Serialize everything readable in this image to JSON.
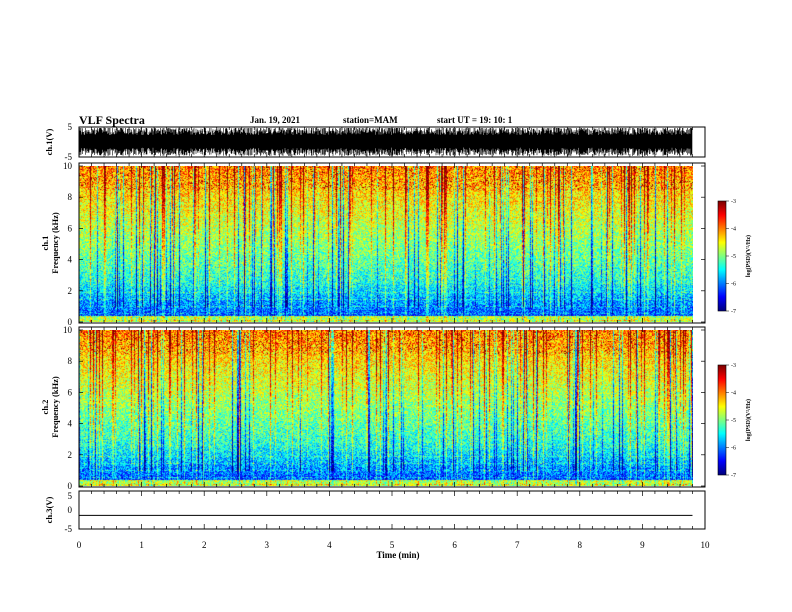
{
  "header": {
    "title": "VLF Spectra",
    "date": "Jan. 19, 2021",
    "station": "station=MAM",
    "start": "start UT =  19: 10: 1"
  },
  "chart_data": [
    {
      "type": "line",
      "panel": "ch1-waveform",
      "ylabel": "ch.1(V)",
      "ylim": [
        -5,
        5
      ],
      "yticks": [
        "5",
        "-5"
      ],
      "xlim": [
        0,
        10
      ],
      "xunit_note": "",
      "data_extent_min": [
        0,
        9.8
      ],
      "signal": "dense oscillating waveform filling roughly -5 to 5 V",
      "color": "#000000"
    },
    {
      "type": "heatmap",
      "panel": "ch1-spectrogram",
      "ylabel": "ch.1\nFrequency (kHz)",
      "ylabel_top": "ch.1",
      "ylabel_bottom": "Frequency (kHz)",
      "ylim": [
        0,
        10
      ],
      "yticks": [
        "0",
        "2",
        "4",
        "6",
        "8",
        "10"
      ],
      "xlim": [
        0,
        10
      ],
      "data_extent_min": [
        0,
        9.8
      ],
      "colorbar": {
        "label": "log(PSD)(V²/Hz)",
        "range": [
          -7,
          -3
        ],
        "ticks": [
          "-3",
          "-4",
          "-5",
          "-6",
          "-7"
        ],
        "colormap": "jet"
      }
    },
    {
      "type": "heatmap",
      "panel": "ch2-spectrogram",
      "ylabel_top": "ch.2",
      "ylabel_bottom": "Frequency (kHz)",
      "ylim": [
        0,
        10
      ],
      "yticks": [
        "0",
        "2",
        "4",
        "6",
        "8",
        "10"
      ],
      "xlim": [
        0,
        10
      ],
      "data_extent_min": [
        0,
        9.8
      ],
      "colorbar": {
        "label": "log(PSD)(V²/Hz)",
        "range": [
          -7,
          -3
        ],
        "ticks": [
          "-3",
          "-4",
          "-5",
          "-6",
          "-7"
        ],
        "colormap": "jet"
      }
    },
    {
      "type": "line",
      "panel": "ch3-waveform",
      "ylabel": "ch.3(V)",
      "ylim": [
        -5,
        5
      ],
      "yticks": [
        "5",
        "0",
        "-5"
      ],
      "xlim": [
        0,
        10
      ],
      "data_extent_min": [
        0,
        9.8
      ],
      "signal": "flat line near -1.5 V",
      "level": -1.5,
      "color": "#000000"
    }
  ],
  "xaxis": {
    "label": "Time (min)",
    "ticks": [
      "0",
      "1",
      "2",
      "3",
      "4",
      "5",
      "6",
      "7",
      "8",
      "9",
      "10"
    ],
    "range": [
      0,
      10
    ]
  }
}
